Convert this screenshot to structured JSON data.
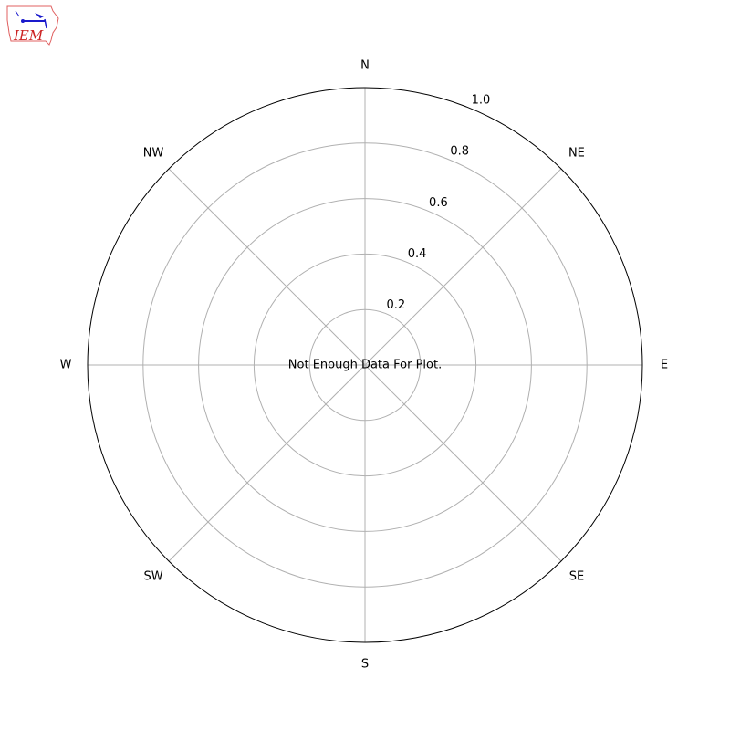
{
  "chart_data": {
    "type": "polar",
    "title": "",
    "message": "Not Enough Data For Plot.",
    "direction_labels": [
      "N",
      "NE",
      "E",
      "SE",
      "S",
      "SW",
      "W",
      "NW"
    ],
    "radial_ticks": [
      "0.2",
      "0.4",
      "0.6",
      "0.8",
      "1.0"
    ],
    "radial_values": [
      0.2,
      0.4,
      0.6,
      0.8,
      1.0
    ],
    "rlim": [
      0,
      1.0
    ],
    "grid": true,
    "series": []
  },
  "logo": {
    "text": "IEM",
    "colors": {
      "outline": "#e06060",
      "text": "#cc2222",
      "symbol": "#1a1acc"
    }
  },
  "colors": {
    "grid": "#b0b0b0",
    "frame": "#000000"
  }
}
